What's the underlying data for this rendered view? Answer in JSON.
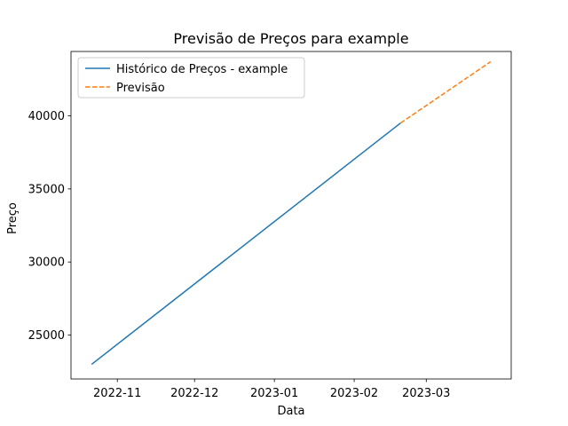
{
  "chart_data": {
    "type": "line",
    "title": "Previsão de Preços para example",
    "xlabel": "Data",
    "ylabel": "Preço",
    "xlim": [
      "2022-10-14",
      "2023-04-03"
    ],
    "ylim": [
      22000,
      44400
    ],
    "x_ticks": [
      "2022-11-01",
      "2022-12-01",
      "2023-01-01",
      "2023-02-01",
      "2023-03-01"
    ],
    "x_tick_labels": [
      "2022-11",
      "2022-12",
      "2023-01",
      "2023-02",
      "2023-03"
    ],
    "y_ticks": [
      25000,
      30000,
      35000,
      40000
    ],
    "y_tick_labels": [
      "25000",
      "30000",
      "35000",
      "40000"
    ],
    "grid": false,
    "legend": "top-left",
    "series": [
      {
        "name": "Histórico de Preços - example",
        "color": "#1f77b4",
        "style": "solid",
        "x": [
          "2022-10-22",
          "2023-02-19"
        ],
        "y": [
          23000,
          39500
        ]
      },
      {
        "name": "Previsão",
        "color": "#ff7f0e",
        "style": "dashed",
        "x": [
          "2023-02-19",
          "2023-03-26"
        ],
        "y": [
          39500,
          43700
        ]
      }
    ]
  }
}
